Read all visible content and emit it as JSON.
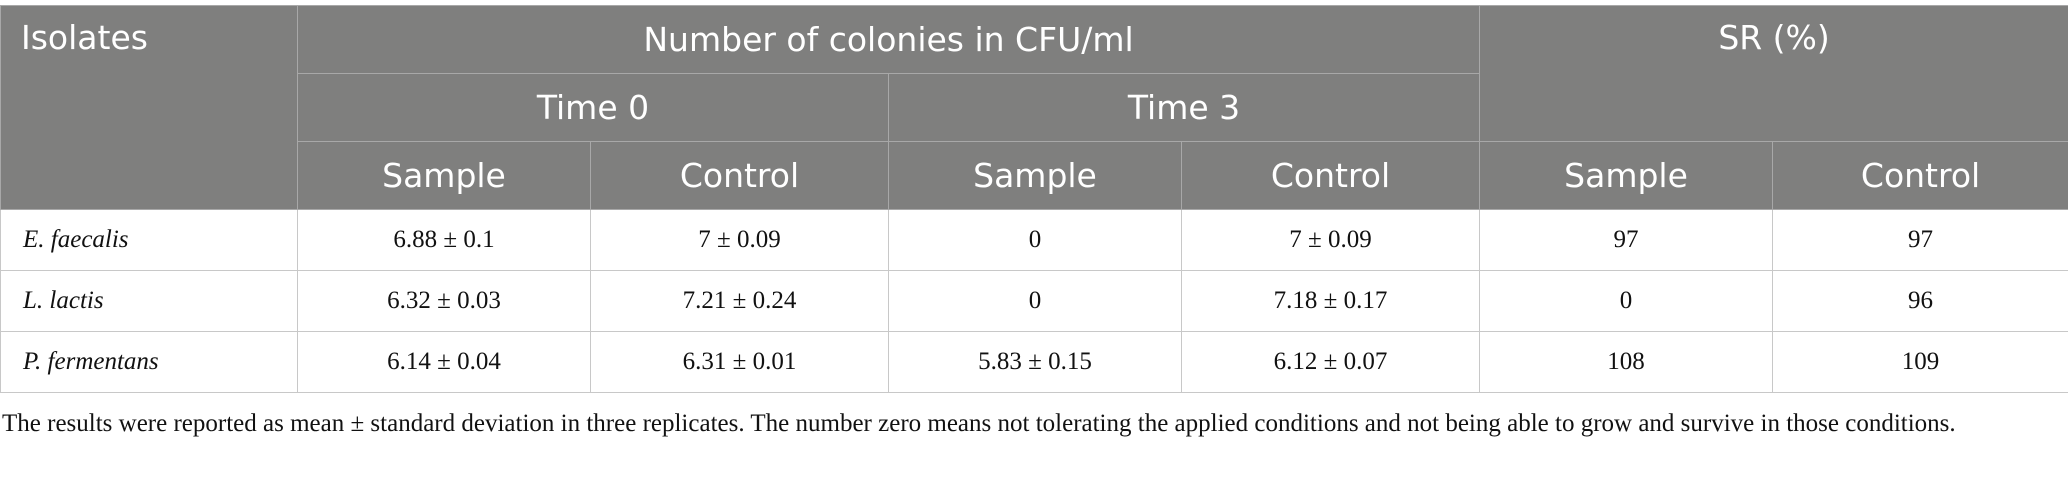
{
  "table": {
    "header": {
      "isolates": "Isolates",
      "group": "Number of colonies in CFU/ml",
      "sr": "SR (%)",
      "time0": "Time 0",
      "time3": "Time 3",
      "sub": [
        "Sample",
        "Control",
        "Sample",
        "Control",
        "Sample",
        "Control"
      ]
    },
    "rows": [
      [
        "E. faecalis",
        "6.88 ± 0.1",
        "7 ± 0.09",
        0,
        "7 ± 0.09",
        97,
        97
      ],
      [
        "L. lactis",
        "6.32 ± 0.03",
        "7.21 ± 0.24",
        0,
        "7.18 ± 0.17",
        0,
        96
      ],
      [
        "P. fermentans",
        "6.14 ± 0.04",
        "6.31 ± 0.01",
        "5.83 ± 0.15",
        "6.12 ± 0.07",
        108,
        109
      ]
    ]
  },
  "footnote": "The results were reported as mean ± standard deviation in three replicates. The number zero means not tolerating the applied conditions and not being able to grow and survive in those conditions."
}
